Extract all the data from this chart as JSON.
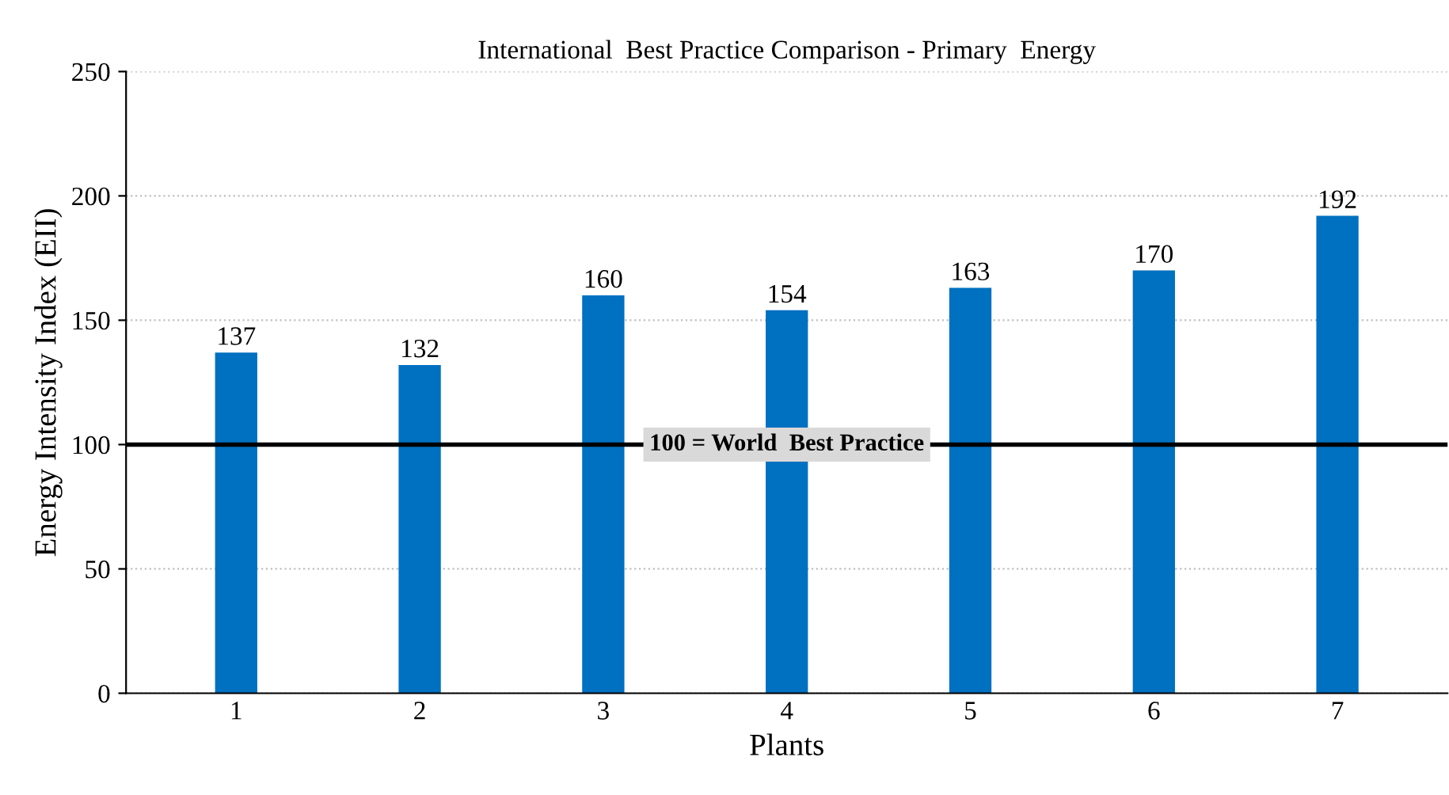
{
  "chart_data": {
    "type": "bar",
    "title": "International  Best Practice Comparison - Primary  Energy",
    "xlabel": "Plants",
    "ylabel": "Energy Intensity Index (EII)",
    "categories": [
      "1",
      "2",
      "3",
      "4",
      "5",
      "6",
      "7"
    ],
    "values": [
      137,
      132,
      160,
      154,
      163,
      170,
      192
    ],
    "color": "#0070c0",
    "ylim": [
      0,
      250
    ],
    "yticks": [
      0,
      50,
      100,
      150,
      200,
      250
    ],
    "grid": "y",
    "data_labels": true,
    "ref_lines": [
      {
        "axis": "y",
        "value": 100,
        "label": "100 = World  Best Practice",
        "color": "#000000",
        "line_style": "solid"
      }
    ]
  }
}
